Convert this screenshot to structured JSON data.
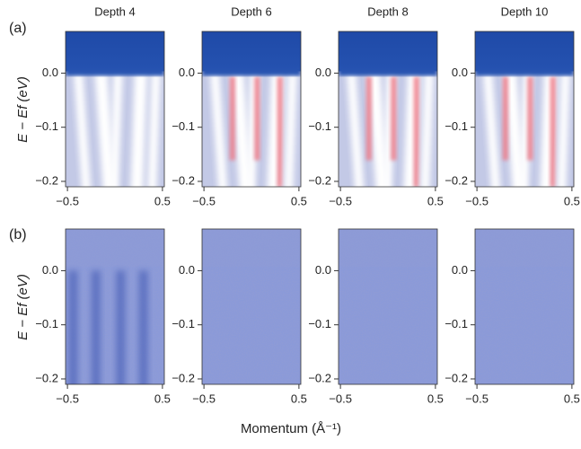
{
  "panel_labels": [
    "(a)",
    "(b)"
  ],
  "x_label": "Momentum (Å⁻¹)",
  "y_label": "E − Ef (eV)",
  "chart_data": [
    {
      "type": "heatmap",
      "title": "Depth 4",
      "xlim": [
        -0.52,
        0.52
      ],
      "ylim": [
        -0.21,
        0.077
      ],
      "xticks": [
        {
          "value": -0.5,
          "label": "−0.5"
        },
        0.5
      ],
      "yticks": [
        {
          "value": 0,
          "label": "0.0"
        },
        {
          "value": -0.1,
          "label": "−0.1"
        },
        {
          "value": -0.2,
          "label": "−0.2"
        }
      ]
    },
    {
      "type": "heatmap",
      "title": "Depth 6",
      "xlim": [
        -0.52,
        0.52
      ],
      "ylim": [
        -0.21,
        0.077
      ],
      "xticks": [
        {
          "value": -0.5,
          "label": "−0.5"
        },
        0.5
      ],
      "yticks": [
        {
          "value": 0,
          "label": "0.0"
        },
        {
          "value": -0.1,
          "label": "−0.1"
        },
        {
          "value": -0.2,
          "label": "−0.2"
        }
      ]
    },
    {
      "type": "heatmap",
      "title": "Depth 8",
      "xlim": [
        -0.52,
        0.52
      ],
      "ylim": [
        -0.21,
        0.077
      ],
      "xticks": [
        {
          "value": -0.5,
          "label": "−0.5"
        },
        0.5
      ],
      "yticks": [
        {
          "value": 0,
          "label": "0.0"
        },
        {
          "value": -0.1,
          "label": "−0.1"
        },
        {
          "value": -0.2,
          "label": "−0.2"
        }
      ]
    },
    {
      "type": "heatmap",
      "title": "Depth 10",
      "xlim": [
        -0.52,
        0.52
      ],
      "ylim": [
        -0.21,
        0.077
      ],
      "xticks": [
        {
          "value": -0.5,
          "label": "−0.5"
        },
        0.5
      ],
      "yticks": [
        {
          "value": 0,
          "label": "0.0"
        },
        {
          "value": -0.1,
          "label": "−0.1"
        },
        {
          "value": -0.2,
          "label": "−0.2"
        }
      ]
    },
    {
      "type": "heatmap",
      "xlim": [
        -0.52,
        0.52
      ],
      "ylim": [
        -0.21,
        0.077
      ],
      "xticks": [
        {
          "value": -0.5,
          "label": "−0.5"
        },
        0.5
      ],
      "yticks": [
        {
          "value": 0,
          "label": "0.0"
        },
        {
          "value": -0.1,
          "label": "−0.1"
        },
        {
          "value": -0.2,
          "label": "−0.2"
        }
      ]
    },
    {
      "type": "heatmap",
      "xlim": [
        -0.52,
        0.52
      ],
      "ylim": [
        -0.21,
        0.077
      ],
      "xticks": [
        {
          "value": -0.5,
          "label": "−0.5"
        },
        0.5
      ],
      "yticks": [
        {
          "value": 0,
          "label": "0.0"
        },
        {
          "value": -0.1,
          "label": "−0.1"
        },
        {
          "value": -0.2,
          "label": "−0.2"
        }
      ]
    },
    {
      "type": "heatmap",
      "xlim": [
        -0.52,
        0.52
      ],
      "ylim": [
        -0.21,
        0.077
      ],
      "xticks": [
        {
          "value": -0.5,
          "label": "−0.5"
        },
        0.5
      ],
      "yticks": [
        {
          "value": 0,
          "label": "0.0"
        },
        {
          "value": -0.1,
          "label": "−0.1"
        },
        {
          "value": -0.2,
          "label": "−0.2"
        }
      ]
    },
    {
      "type": "heatmap",
      "xlim": [
        -0.52,
        0.52
      ],
      "ylim": [
        -0.21,
        0.077
      ],
      "xticks": [
        {
          "value": -0.5,
          "label": "−0.5"
        },
        0.5
      ],
      "yticks": [
        {
          "value": 0,
          "label": "0.0"
        },
        {
          "value": -0.1,
          "label": "−0.1"
        },
        {
          "value": -0.2,
          "label": "−0.2"
        }
      ]
    }
  ]
}
